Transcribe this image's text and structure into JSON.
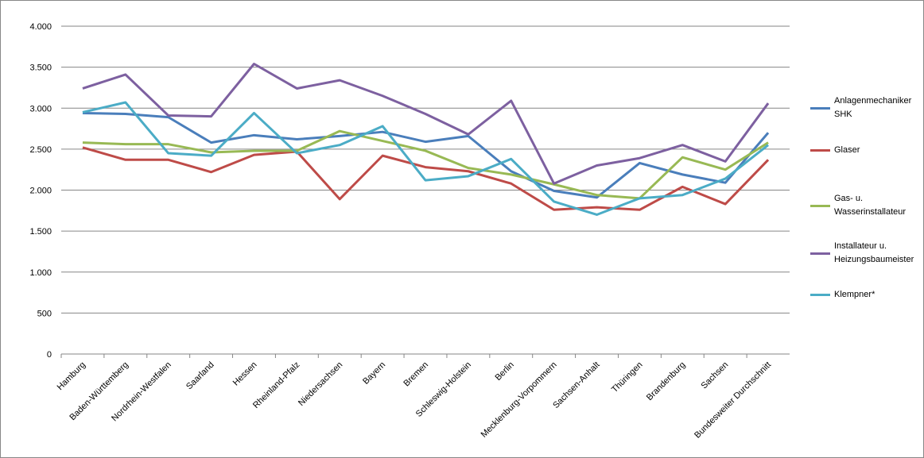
{
  "chart_data": {
    "type": "line",
    "categories": [
      "Hamburg",
      "Baden-Württemberg",
      "Nordrhein-Westfalen",
      "Saarland",
      "Hessen",
      "Rheinland-Pfalz",
      "Niedersachsen",
      "Bayern",
      "Bremen",
      "Schleswig-Holstein",
      "Berlin",
      "Mecklenburg-Vorpommern",
      "Sachsen-Anhalt",
      "Thüringen",
      "Brandenburg",
      "Sachsen",
      "Bundesweiter Durchschnitt"
    ],
    "series": [
      {
        "name": "Anlagenmechaniker SHK",
        "color": "#4a7ebb",
        "values": [
          2940,
          2930,
          2890,
          2580,
          2670,
          2620,
          2660,
          2710,
          2590,
          2660,
          2230,
          1990,
          1910,
          2330,
          2190,
          2090,
          2700
        ]
      },
      {
        "name": "Glaser",
        "color": "#be4b48",
        "values": [
          2520,
          2370,
          2370,
          2220,
          2430,
          2470,
          1890,
          2420,
          2280,
          2230,
          2080,
          1760,
          1790,
          1760,
          2040,
          1830,
          2370
        ]
      },
      {
        "name": "Gas- u. Wasserinstallateur",
        "color": "#98b954",
        "values": [
          2580,
          2560,
          2560,
          2460,
          2480,
          2480,
          2720,
          2600,
          2480,
          2270,
          2190,
          2070,
          1940,
          1900,
          2400,
          2250,
          2580
        ]
      },
      {
        "name": "Installateur u. Heizungsbaumeister",
        "color": "#7d60a0",
        "values": [
          3240,
          3410,
          2910,
          2900,
          3540,
          3240,
          3340,
          3150,
          2930,
          2680,
          3090,
          2080,
          2300,
          2390,
          2550,
          2350,
          3060
        ]
      },
      {
        "name": "Klempner*",
        "color": "#4bacc6",
        "values": [
          2950,
          3070,
          2450,
          2420,
          2940,
          2450,
          2550,
          2780,
          2120,
          2170,
          2380,
          1860,
          1700,
          1900,
          1940,
          2140,
          2550
        ]
      }
    ],
    "ylim": [
      0,
      4000
    ],
    "yticks": [
      0,
      500,
      {
        "value": 1000,
        "label": "1.000"
      },
      {
        "value": 1500,
        "label": "1.500"
      },
      {
        "value": 2000,
        "label": "2.000"
      },
      {
        "value": 2500,
        "label": "2.500"
      },
      {
        "value": 3000,
        "label": "3.000"
      },
      {
        "value": 3500,
        "label": "3.500"
      },
      {
        "value": 4000,
        "label": "4.000"
      }
    ],
    "grid": true
  }
}
